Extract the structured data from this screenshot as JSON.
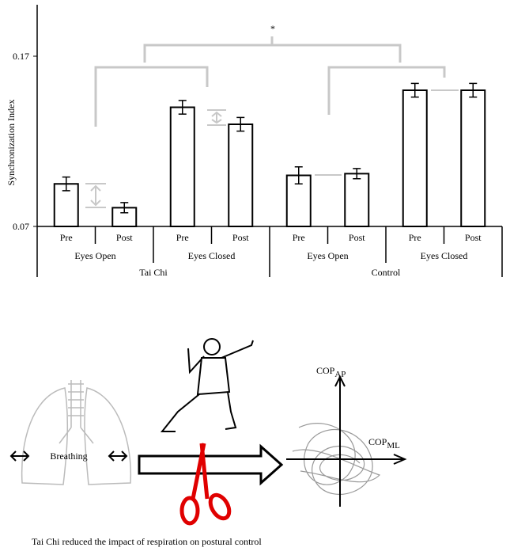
{
  "chart_data": {
    "type": "bar",
    "y_label": "Synchronization Index",
    "annotation": "*",
    "categories": [
      "Pre",
      "Post",
      "Pre",
      "Post",
      "Pre",
      "Post",
      "Pre",
      "Post"
    ],
    "groups": [
      "Eyes Open",
      "Eyes Closed",
      "Eyes Open",
      "Eyes Closed"
    ],
    "supergroups": [
      "Tai Chi",
      "Control"
    ],
    "series": [
      {
        "color": "#ffffff",
        "values": [
          0.095,
          0.081,
          0.14,
          0.13,
          0.1,
          0.101,
          0.15,
          0.15
        ],
        "errors": [
          0.004,
          0.003,
          0.004,
          0.004,
          0.005,
          0.003,
          0.004,
          0.004
        ]
      }
    ],
    "ylim": [
      0.07,
      0.2
    ],
    "yticks": [
      0.07,
      0.17
    ]
  },
  "diagram": {
    "breathing": "Breathing",
    "cop_ap": {
      "base": "COP",
      "sub": "AP"
    },
    "cop_ml": {
      "base": "COP",
      "sub": "ML"
    },
    "caption": "Tai Chi reduced the impact of respiration  on postural control"
  }
}
